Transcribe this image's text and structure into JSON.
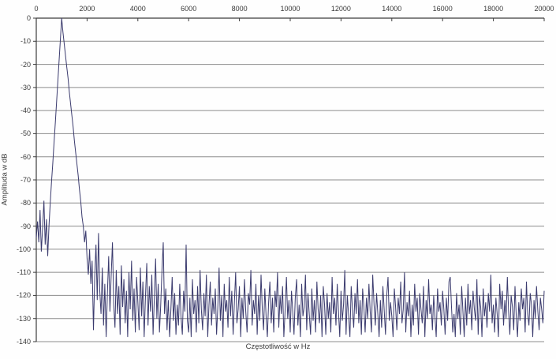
{
  "figure": {
    "y_axis_title": "Amplituda w dB",
    "x_axis_title": "Częstotliwość w Hz"
  },
  "chart_data": {
    "type": "line",
    "title": "",
    "xlabel": "Częstotliwość w Hz",
    "ylabel": "Amplituda w dB",
    "xlim": [
      0,
      20000
    ],
    "ylim": [
      -140,
      0
    ],
    "x_ticks": [
      0,
      2000,
      4000,
      6000,
      8000,
      10000,
      12000,
      14000,
      16000,
      18000,
      20000
    ],
    "y_ticks": [
      0,
      -10,
      -20,
      -30,
      -40,
      -50,
      -60,
      -70,
      -80,
      -90,
      -100,
      -110,
      -120,
      -130,
      -140
    ],
    "grid": "horizontal",
    "legend": "none",
    "line_color": "#3b3b6e",
    "grid_color": "#8c8c8c",
    "axis_color": "#3c3c3c",
    "peak": {
      "frequency_hz": 1000,
      "amplitude_db": 0
    },
    "x_start": 0,
    "x_step": 50,
    "values": [
      -95,
      -88,
      -97,
      -83,
      -101,
      -91,
      -79,
      -98,
      -87,
      -103,
      -90,
      -80,
      -71,
      -63,
      -54,
      -45,
      -36,
      -27,
      -18,
      -9,
      0,
      -6,
      -11,
      -16,
      -21,
      -26,
      -32,
      -37,
      -42,
      -47,
      -53,
      -58,
      -63,
      -68,
      -74,
      -79,
      -86,
      -90,
      -97,
      -92,
      -104,
      -111,
      -100,
      -115,
      -105,
      -135,
      -112,
      -98,
      -122,
      -93,
      -118,
      -128,
      -108,
      -133,
      -115,
      -138,
      -119,
      -103,
      -127,
      -111,
      -97,
      -124,
      -134,
      -109,
      -128,
      -116,
      -137,
      -107,
      -125,
      -113,
      -132,
      -118,
      -138,
      -110,
      -126,
      -105,
      -131,
      -117,
      -136,
      -112,
      -123,
      -135,
      -108,
      -129,
      -114,
      -138,
      -120,
      -106,
      -133,
      -116,
      -127,
      -111,
      -137,
      -121,
      -104,
      -130,
      -115,
      -136,
      -124,
      -109,
      -97,
      -128,
      -117,
      -135,
      -122,
      -138,
      -126,
      -112,
      -131,
      -119,
      -137,
      -124,
      -133,
      -115,
      -129,
      -137,
      -118,
      -127,
      -98,
      -131,
      -136,
      -121,
      -138,
      -113,
      -128,
      -122,
      -136,
      -116,
      -132,
      -109,
      -126,
      -135,
      -119,
      -129,
      -111,
      -138,
      -124,
      -114,
      -133,
      -121,
      -128,
      -117,
      -137,
      -125,
      -108,
      -131,
      -120,
      -138,
      -115,
      -127,
      -122,
      -134,
      -112,
      -129,
      -118,
      -137,
      -123,
      -110,
      -132,
      -126,
      -116,
      -138,
      -121,
      -130,
      -113,
      -127,
      -136,
      -119,
      -124,
      -109,
      -133,
      -122,
      -128,
      -115,
      -137,
      -120,
      -131,
      -111,
      -126,
      -135,
      -117,
      -129,
      -138,
      -123,
      -114,
      -132,
      -121,
      -136,
      -118,
      -125,
      -110,
      -134,
      -120,
      -128,
      -116,
      -138,
      -126,
      -112,
      -130,
      -122,
      -136,
      -118,
      -127,
      -137,
      -121,
      -113,
      -133,
      -124,
      -138,
      -115,
      -129,
      -125,
      -111,
      -135,
      -119,
      -128,
      -137,
      -117,
      -131,
      -122,
      -136,
      -114,
      -126,
      -132,
      -120,
      -138,
      -116,
      -124,
      -137,
      -119,
      -130,
      -123,
      -136,
      -112,
      -128,
      -121,
      -133,
      -115,
      -127,
      -138,
      -118,
      -131,
      -124,
      -109,
      -137,
      -120,
      -129,
      -138,
      -116,
      -126,
      -134,
      -119,
      -128,
      -113,
      -132,
      -122,
      -137,
      -117,
      -125,
      -136,
      -121,
      -130,
      -115,
      -127,
      -136,
      -111,
      -124,
      -133,
      -119,
      -128,
      -138,
      -122,
      -134,
      -116,
      -126,
      -137,
      -120,
      -112,
      -131,
      -123,
      -129,
      -138,
      -117,
      -125,
      -135,
      -121,
      -128,
      -114,
      -132,
      -126,
      -110,
      -136,
      -123,
      -129,
      -118,
      -138,
      -124,
      -133,
      -115,
      -127,
      -121,
      -137,
      -119,
      -126,
      -132,
      -116,
      -138,
      -122,
      -130,
      -113,
      -128,
      -124,
      -135,
      -120,
      -129,
      -138,
      -117,
      -127,
      -123,
      -133,
      -118,
      -126,
      -137,
      -121,
      -131,
      -114,
      -112,
      -125,
      -136,
      -128,
      -138,
      -119,
      -130,
      -124,
      -137,
      -116,
      -127,
      -138,
      -121,
      -133,
      -115,
      -128,
      -122,
      -135,
      -118,
      -126,
      -131,
      -113,
      -137,
      -120,
      -125,
      -138,
      -117,
      -129,
      -123,
      -134,
      -119,
      -127,
      -111,
      -132,
      -124,
      -136,
      -121,
      -128,
      -138,
      -115,
      -126,
      -118,
      -133,
      -122,
      -130,
      -112,
      -127,
      -137,
      -120,
      -125,
      -135,
      -116,
      -129,
      -138,
      -123,
      -131,
      -117,
      -126,
      -121,
      -136,
      -114,
      -128,
      -133,
      -119,
      -124,
      -138,
      -122,
      -130,
      -116,
      -127,
      -135,
      -121,
      -126,
      -132,
      -118
    ]
  }
}
